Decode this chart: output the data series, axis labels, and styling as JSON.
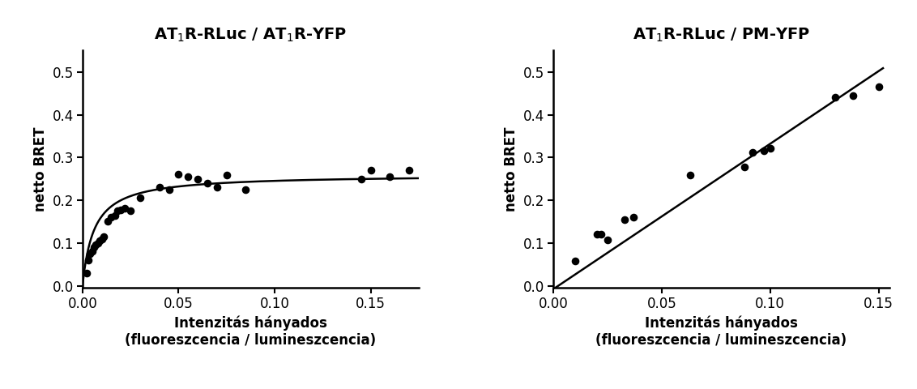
{
  "panel1": {
    "title": "AT$_1$R-RLuc / AT$_1$R-YFP",
    "scatter_x": [
      0.002,
      0.003,
      0.004,
      0.005,
      0.006,
      0.007,
      0.008,
      0.009,
      0.01,
      0.011,
      0.013,
      0.015,
      0.017,
      0.018,
      0.02,
      0.022,
      0.025,
      0.03,
      0.04,
      0.045,
      0.05,
      0.055,
      0.06,
      0.065,
      0.07,
      0.075,
      0.085,
      0.145,
      0.15,
      0.16,
      0.17
    ],
    "scatter_y": [
      0.03,
      0.06,
      0.075,
      0.08,
      0.09,
      0.095,
      0.1,
      0.105,
      0.11,
      0.115,
      0.15,
      0.16,
      0.165,
      0.175,
      0.178,
      0.182,
      0.175,
      0.205,
      0.23,
      0.225,
      0.26,
      0.255,
      0.25,
      0.24,
      0.23,
      0.258,
      0.225,
      0.25,
      0.27,
      0.255,
      0.27
    ],
    "curve_Bmax": 0.26,
    "curve_Kd": 0.006,
    "xlim": [
      0.0,
      0.175
    ],
    "ylim": [
      -0.005,
      0.55
    ],
    "xticks": [
      0.0,
      0.05,
      0.1,
      0.15
    ],
    "yticks": [
      0.0,
      0.1,
      0.2,
      0.3,
      0.4,
      0.5
    ],
    "xlabel": "Intenzitás hányados\n(fluoreszcencia / lumineszcencia)",
    "ylabel": "netto BRET"
  },
  "panel2": {
    "title": "AT$_1$R-RLuc / PM-YFP",
    "scatter_x": [
      0.01,
      0.02,
      0.022,
      0.025,
      0.033,
      0.037,
      0.063,
      0.088,
      0.092,
      0.097,
      0.1,
      0.13,
      0.138,
      0.15
    ],
    "scatter_y": [
      0.058,
      0.12,
      0.12,
      0.107,
      0.155,
      0.16,
      0.258,
      0.278,
      0.312,
      0.315,
      0.322,
      0.44,
      0.445,
      0.465
    ],
    "line_slope": 3.4,
    "line_intercept": -0.008,
    "line_x_start": 0.0,
    "line_x_end": 0.152,
    "xlim": [
      0.0,
      0.155
    ],
    "ylim": [
      -0.005,
      0.55
    ],
    "xticks": [
      0.0,
      0.05,
      0.1,
      0.15
    ],
    "yticks": [
      0.0,
      0.1,
      0.2,
      0.3,
      0.4,
      0.5
    ],
    "xlabel": "Intenzitás hányados\n(fluoreszcencia / lumineszcencia)",
    "ylabel": "netto BRET"
  },
  "scatter_color": "#000000",
  "line_color": "#000000",
  "scatter_size": 35,
  "line_width": 1.8,
  "background_color": "#ffffff",
  "tick_fontsize": 12,
  "label_fontsize": 12,
  "title_fontsize": 14,
  "font_family": "Arial"
}
